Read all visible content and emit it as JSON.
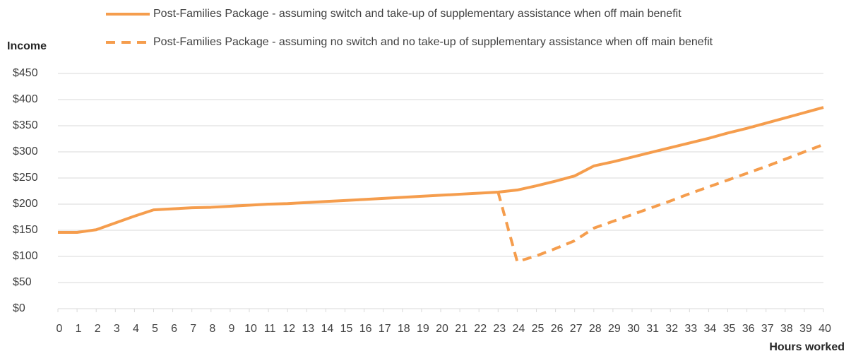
{
  "chart_data": {
    "type": "line",
    "y_label": "Income",
    "x_label": "Hours worked",
    "x": [
      0,
      1,
      2,
      3,
      4,
      5,
      6,
      7,
      8,
      9,
      10,
      11,
      12,
      13,
      14,
      15,
      16,
      17,
      18,
      19,
      20,
      21,
      22,
      23,
      24,
      25,
      26,
      27,
      28,
      29,
      30,
      31,
      32,
      33,
      34,
      35,
      36,
      37,
      38,
      39,
      40
    ],
    "xlim": [
      0,
      40
    ],
    "ylim": [
      0,
      450
    ],
    "yticks": [
      {
        "value": 0,
        "label": "$0"
      },
      {
        "value": 50,
        "label": "$50"
      },
      {
        "value": 100,
        "label": "$100"
      },
      {
        "value": 150,
        "label": "$150"
      },
      {
        "value": 200,
        "label": "$200"
      },
      {
        "value": 250,
        "label": "$250"
      },
      {
        "value": 300,
        "label": "$300"
      },
      {
        "value": 350,
        "label": "$350"
      },
      {
        "value": 400,
        "label": "$400"
      },
      {
        "value": 450,
        "label": "$450"
      }
    ],
    "grid": true,
    "series": [
      {
        "name": "Post-Families Package - assuming switch and take-up of supplementary assistance when off main benefit",
        "color": "#f59d4d",
        "dashed": false,
        "values": [
          146,
          146,
          151,
          164,
          177,
          189,
          191,
          193,
          194,
          196,
          198,
          200,
          201,
          203,
          205,
          207,
          209,
          211,
          213,
          215,
          217,
          219,
          221,
          223,
          227,
          235,
          244,
          254,
          273,
          281,
          290,
          299,
          308,
          317,
          326,
          336,
          345,
          355,
          365,
          375,
          385
        ]
      },
      {
        "name": "Post-Families Package - assuming no switch and no take-up of supplementary assistance when off main benefit",
        "color": "#f59d4d",
        "dashed": true,
        "values": [
          null,
          null,
          null,
          null,
          null,
          null,
          null,
          null,
          null,
          null,
          null,
          null,
          null,
          null,
          null,
          null,
          null,
          null,
          null,
          null,
          null,
          null,
          null,
          223,
          90,
          101,
          115,
          130,
          154,
          167,
          180,
          193,
          206,
          220,
          233,
          246,
          259,
          272,
          286,
          300,
          314
        ]
      }
    ]
  }
}
